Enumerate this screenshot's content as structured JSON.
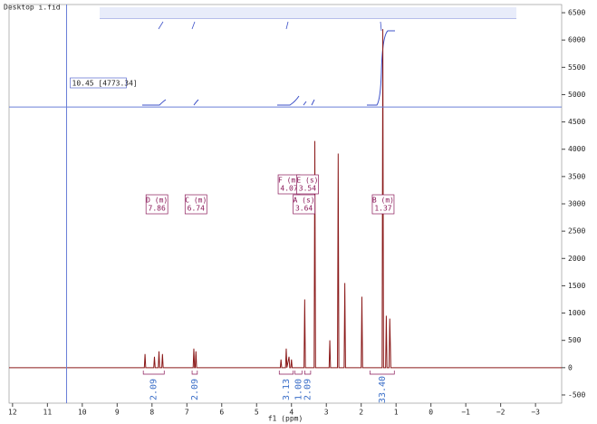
{
  "chart_data": {
    "type": "line",
    "title": "Desktop i.fid",
    "x_label": "f1 (ppm)",
    "xlim": [
      12.1,
      -3.75
    ],
    "ylim": [
      -650,
      6650
    ],
    "xticks": [
      12,
      11,
      10,
      9,
      8,
      7,
      6,
      5,
      4,
      3,
      2,
      1,
      0,
      {
        "value": -1,
        "label": "−1"
      },
      {
        "value": -2,
        "label": "−2"
      },
      {
        "value": -3,
        "label": "−3"
      }
    ],
    "yticks": [
      6500,
      6000,
      5500,
      5000,
      4500,
      4000,
      3500,
      3000,
      2500,
      2000,
      1500,
      1000,
      500,
      0,
      -500
    ],
    "cursor": {
      "x": 10.45,
      "y": 4773.34,
      "label": "10.45 [4773.34]"
    },
    "series": [
      {
        "color": "#8b1a1a",
        "x": [
          12.1,
          8.22,
          8.2,
          8.18,
          7.95,
          7.93,
          7.91,
          7.82,
          7.8,
          7.78,
          7.72,
          7.7,
          7.68,
          6.82,
          6.8,
          6.78,
          6.76,
          6.74,
          6.72,
          4.32,
          4.3,
          4.28,
          4.17,
          4.15,
          4.13,
          4.07,
          4.05,
          4.02,
          4.0,
          3.98,
          3.64,
          3.62,
          3.6,
          3.35,
          3.33,
          3.31,
          2.92,
          2.9,
          2.88,
          2.68,
          2.66,
          2.64,
          2.49,
          2.47,
          2.45,
          2.0,
          1.98,
          1.96,
          1.4,
          1.38,
          1.36,
          1.3,
          1.28,
          1.26,
          1.2,
          1.18,
          1.15,
          1.12,
          -3.75
        ],
        "values": [
          0,
          0,
          250,
          0,
          0,
          200,
          0,
          0,
          300,
          0,
          0,
          250,
          0,
          0,
          350,
          0,
          0,
          300,
          0,
          0,
          150,
          0,
          0,
          350,
          0,
          200,
          0,
          0,
          150,
          0,
          0,
          1250,
          0,
          0,
          4150,
          0,
          0,
          500,
          0,
          0,
          3920,
          0,
          0,
          1550,
          0,
          0,
          1300,
          0,
          0,
          6200,
          0,
          0,
          950,
          0,
          0,
          900,
          0,
          0,
          0
        ]
      }
    ],
    "annotations": [
      {
        "label": "D (m)",
        "shift": 7.86
      },
      {
        "label": "C (m)",
        "shift": 6.74
      },
      {
        "label": "F (m)",
        "shift": 4.07
      },
      {
        "label": "E (s)",
        "shift": 3.54
      },
      {
        "label": "A (s)",
        "shift": 3.64
      },
      {
        "label": "B (m)",
        "shift": 1.37
      }
    ],
    "integrals": [
      "2.09",
      "2.09",
      "3.13",
      "1.00",
      "2.09",
      "33.40"
    ]
  }
}
